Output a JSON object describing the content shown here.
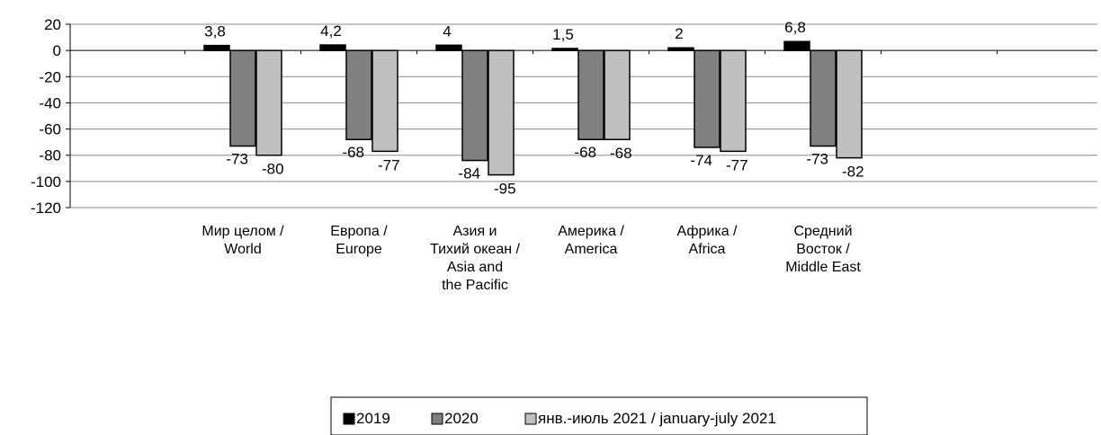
{
  "chart_data": {
    "type": "bar",
    "categories": [
      [
        "Мир целом /",
        "World"
      ],
      [
        "Европа /",
        "Europe"
      ],
      [
        "Азия и",
        "Тихий океан /",
        "Asia and",
        "the Pacific"
      ],
      [
        "Америка /",
        "America"
      ],
      [
        "Африка /",
        "Africa"
      ],
      [
        "Средний",
        "Восток /",
        "Middle East"
      ]
    ],
    "series": [
      {
        "name": "2019",
        "values": [
          3.8,
          4.2,
          4,
          1.5,
          2,
          6.8
        ],
        "labels": [
          "3,8",
          "4,2",
          "4",
          "1,5",
          "2",
          "6,8"
        ],
        "color": "#000000"
      },
      {
        "name": "2020",
        "values": [
          -73,
          -68,
          -84,
          -68,
          -74,
          -73
        ],
        "labels": [
          "-73",
          "-68",
          "-84",
          "-68",
          "-74",
          "-73"
        ],
        "color": "#808080"
      },
      {
        "name": "янв.-июль 2021 / january-july 2021",
        "values": [
          -80,
          -77,
          -95,
          -68,
          -77,
          -82
        ],
        "labels": [
          "-80",
          "-77",
          "-95",
          "-68",
          "-77",
          "-82"
        ],
        "color": "#c0c0c0"
      }
    ],
    "yticks": [
      "20",
      "0",
      "-20",
      "-40",
      "-60",
      "-80",
      "-100",
      "-120"
    ],
    "ylim": [
      -120,
      20
    ],
    "grid": true,
    "legend_position": "bottom"
  }
}
